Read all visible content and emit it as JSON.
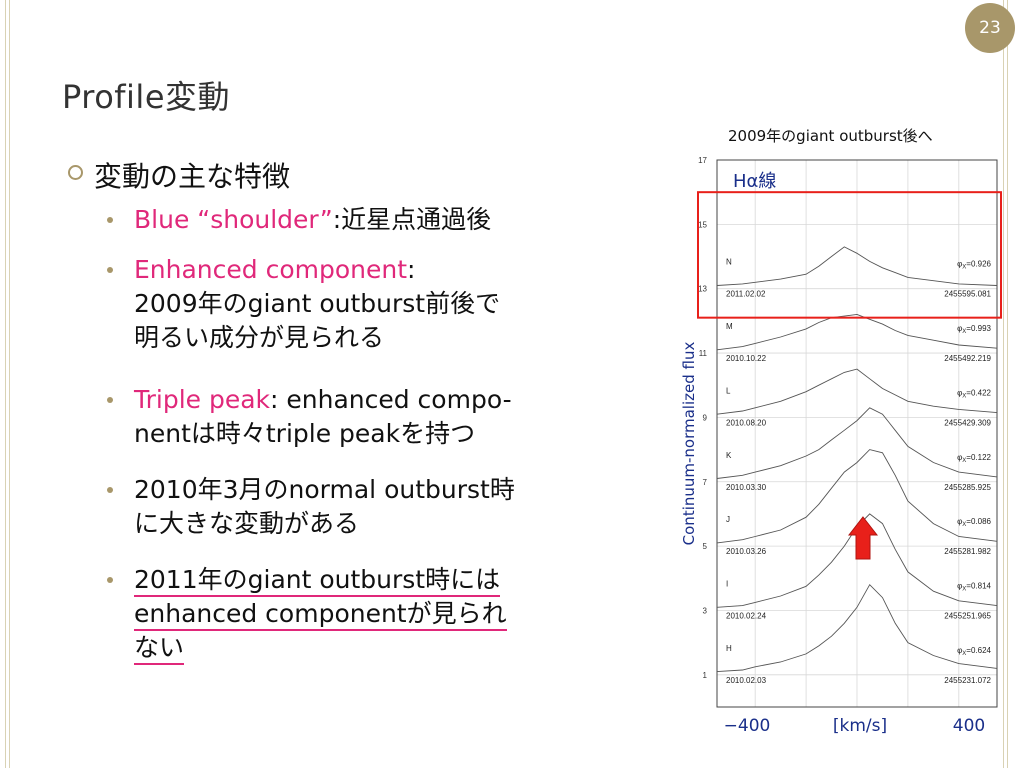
{
  "slide": {
    "page_number": "23",
    "title": "Profile変動",
    "bullet_heading": "変動の主な特徴",
    "items": [
      {
        "lines": [
          {
            "pink": "Blue “shoulder”",
            "black": ":近星点通過後"
          }
        ]
      },
      {
        "lines": [
          {
            "pink": "Enhanced component",
            "black": ":"
          },
          {
            "pink": "",
            "black": "2009年のgiant outburst前後で"
          },
          {
            "pink": "",
            "black": "明るい成分が見られる"
          }
        ]
      },
      {
        "lines": [
          {
            "pink": "Triple peak",
            "black": ": enhanced compo-"
          },
          {
            "pink": "",
            "black": "nentは時々triple peakを持つ"
          }
        ]
      },
      {
        "lines": [
          {
            "pink": "",
            "black": "2010年3月のnormal outburst時"
          },
          {
            "pink": "",
            "black": "に大きな変動がある"
          }
        ]
      },
      {
        "lines": [
          {
            "pink": "",
            "black": "2011年のgiant outburst時には"
          },
          {
            "pink": "",
            "black": "enhanced componentが見られ"
          },
          {
            "pink": "",
            "black": "ない"
          }
        ],
        "underlined": true
      }
    ],
    "caption": "2009年のgiant outburst後へ"
  },
  "chart_data": {
    "type": "line",
    "title": "Hα線",
    "xlabel": "[km/s]",
    "ylabel": "Continuum-normalized flux",
    "x_ticks": [
      "−400",
      "400"
    ],
    "y_ticks": [
      "1",
      "3",
      "5",
      "7",
      "9",
      "11",
      "13",
      "15",
      "17"
    ],
    "xlim": [
      -550,
      550
    ],
    "ylim": [
      0,
      17
    ],
    "grid": true,
    "highlight_box_around": "N",
    "arrow": {
      "color": "#e8201a",
      "direction": "up"
    },
    "x": [
      -550,
      -450,
      -400,
      -300,
      -200,
      -150,
      -100,
      -50,
      0,
      50,
      100,
      150,
      200,
      300,
      400,
      550
    ],
    "series": [
      {
        "name": "N",
        "date": "2011.02.02",
        "jd": "2455595.081",
        "phase": "0.926",
        "offset": 13.0,
        "values": [
          13.1,
          13.15,
          13.2,
          13.3,
          13.45,
          13.7,
          14.0,
          14.3,
          14.1,
          13.85,
          13.65,
          13.5,
          13.35,
          13.25,
          13.15,
          13.1
        ]
      },
      {
        "name": "M",
        "date": "2010.10.22",
        "jd": "2455492.219",
        "phase": "0.993",
        "offset": 11.0,
        "values": [
          11.1,
          11.2,
          11.3,
          11.5,
          11.75,
          11.95,
          12.1,
          12.15,
          12.2,
          12.05,
          11.9,
          11.7,
          11.55,
          11.4,
          11.25,
          11.15
        ]
      },
      {
        "name": "L",
        "date": "2010.08.20",
        "jd": "2455429.309",
        "phase": "0.422",
        "offset": 9.0,
        "values": [
          9.1,
          9.2,
          9.3,
          9.5,
          9.8,
          10.0,
          10.2,
          10.4,
          10.5,
          10.2,
          9.9,
          9.7,
          9.5,
          9.35,
          9.25,
          9.15
        ]
      },
      {
        "name": "K",
        "date": "2010.03.30",
        "jd": "2455285.925",
        "phase": "0.122",
        "offset": 7.0,
        "values": [
          7.1,
          7.2,
          7.3,
          7.5,
          7.8,
          8.0,
          8.3,
          8.6,
          8.9,
          9.3,
          9.1,
          8.6,
          8.1,
          7.6,
          7.3,
          7.15
        ]
      },
      {
        "name": "J",
        "date": "2010.03.26",
        "jd": "2455281.982",
        "phase": "0.086",
        "offset": 5.0,
        "values": [
          5.1,
          5.2,
          5.3,
          5.5,
          5.9,
          6.3,
          6.8,
          7.3,
          7.6,
          8.0,
          7.9,
          7.2,
          6.4,
          5.7,
          5.3,
          5.15
        ]
      },
      {
        "name": "I",
        "date": "2010.02.24",
        "jd": "2455251.965",
        "phase": "0.814",
        "offset": 3.0,
        "values": [
          3.1,
          3.15,
          3.25,
          3.45,
          3.75,
          4.1,
          4.5,
          5.0,
          5.6,
          6.0,
          5.7,
          4.9,
          4.2,
          3.6,
          3.3,
          3.15
        ]
      },
      {
        "name": "H",
        "date": "2010.02.03",
        "jd": "2455231.072",
        "phase": "0.624",
        "offset": 1.0,
        "values": [
          1.1,
          1.15,
          1.25,
          1.4,
          1.65,
          1.9,
          2.2,
          2.6,
          3.1,
          3.8,
          3.4,
          2.6,
          2.0,
          1.6,
          1.35,
          1.2
        ]
      }
    ]
  }
}
